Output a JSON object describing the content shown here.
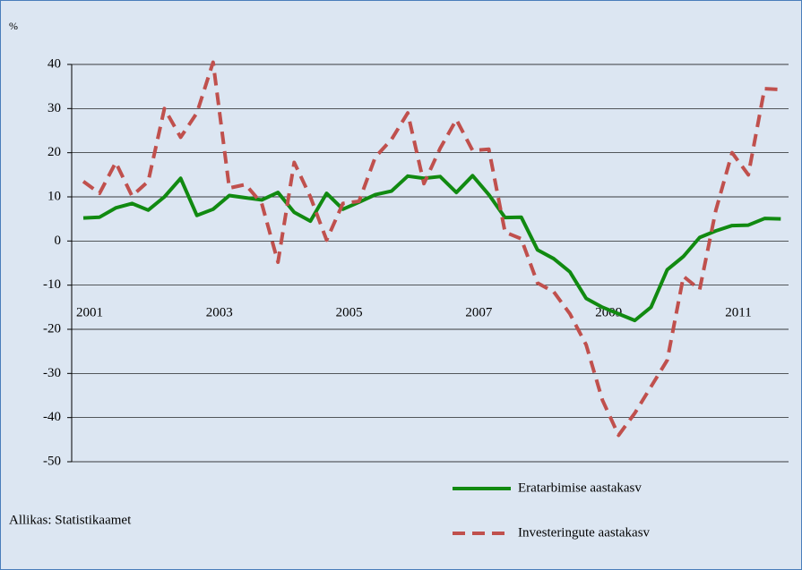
{
  "chart_data": {
    "type": "line",
    "y_label": "%",
    "note": "Allikas: Statistikaamet",
    "categories": [
      "2001",
      null,
      null,
      null,
      null,
      null,
      null,
      null,
      "2003",
      null,
      null,
      null,
      null,
      null,
      null,
      null,
      "2005",
      null,
      null,
      null,
      null,
      null,
      null,
      null,
      "2007",
      null,
      null,
      null,
      null,
      null,
      null,
      null,
      "2009",
      null,
      null,
      null,
      null,
      null,
      null,
      null,
      "2011",
      null,
      null,
      null
    ],
    "series": [
      {
        "name": "Eratarbimise aastakasv",
        "color": "#118a11",
        "dash": false,
        "values": [
          5.2,
          5.4,
          7.5,
          8.5,
          7,
          10,
          14.2,
          5.8,
          7.2,
          10.3,
          9.8,
          9.3,
          11,
          6.5,
          4.5,
          10.8,
          7.2,
          8.8,
          10.5,
          11.3,
          14.7,
          14.2,
          14.6,
          11,
          14.8,
          10.5,
          5.3,
          5.4,
          -2,
          -4,
          -7,
          -13,
          -15,
          -16.5,
          -18,
          -15,
          -6.5,
          -3.5,
          0.8,
          2.3,
          3.5,
          3.6,
          5.1,
          5
        ]
      },
      {
        "name": "Investeringute aastakasv",
        "color": "#c0504d",
        "dash": true,
        "values": [
          13.5,
          10.8,
          17.8,
          10.2,
          13.5,
          30,
          23.5,
          29,
          40.5,
          12,
          12.8,
          8.5,
          -4.8,
          17.8,
          10,
          0.2,
          8.5,
          9,
          19,
          23,
          29,
          13,
          21,
          27.5,
          20.5,
          20.8,
          2,
          0.5,
          -9.5,
          -11.5,
          -16.5,
          -23.5,
          -36,
          -44,
          -39,
          -33,
          -27,
          -8,
          -11,
          7,
          20,
          15,
          34.5,
          34.3
        ]
      }
    ],
    "ylim": [
      -50,
      40
    ],
    "yticks": [
      -50,
      -40,
      -30,
      -20,
      -10,
      0,
      10,
      20,
      30,
      40
    ],
    "grid": true
  }
}
